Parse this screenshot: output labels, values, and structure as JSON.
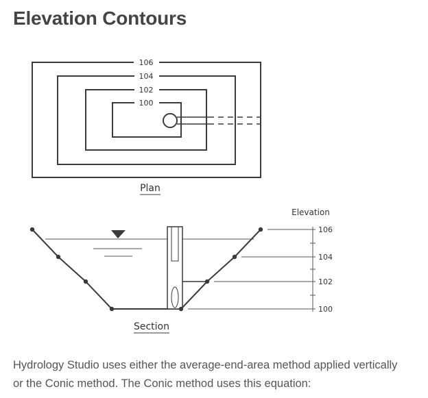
{
  "page": {
    "title": "Elevation Contours"
  },
  "plan": {
    "caption": "Plan",
    "contour_labels": [
      "106",
      "104",
      "102",
      "100"
    ]
  },
  "section": {
    "caption": "Section",
    "elevation_header": "Elevation",
    "elevation_labels": [
      "106",
      "104",
      "102",
      "100"
    ]
  },
  "body": {
    "line1": "Hydrology Studio uses either the average-end-area method applied vertically",
    "line2": "or the Conic method. The Conic method uses this equation:"
  },
  "colors": {
    "line": "#3a3a3a",
    "thin": "#555555",
    "title": "#444444",
    "text": "#555555"
  }
}
